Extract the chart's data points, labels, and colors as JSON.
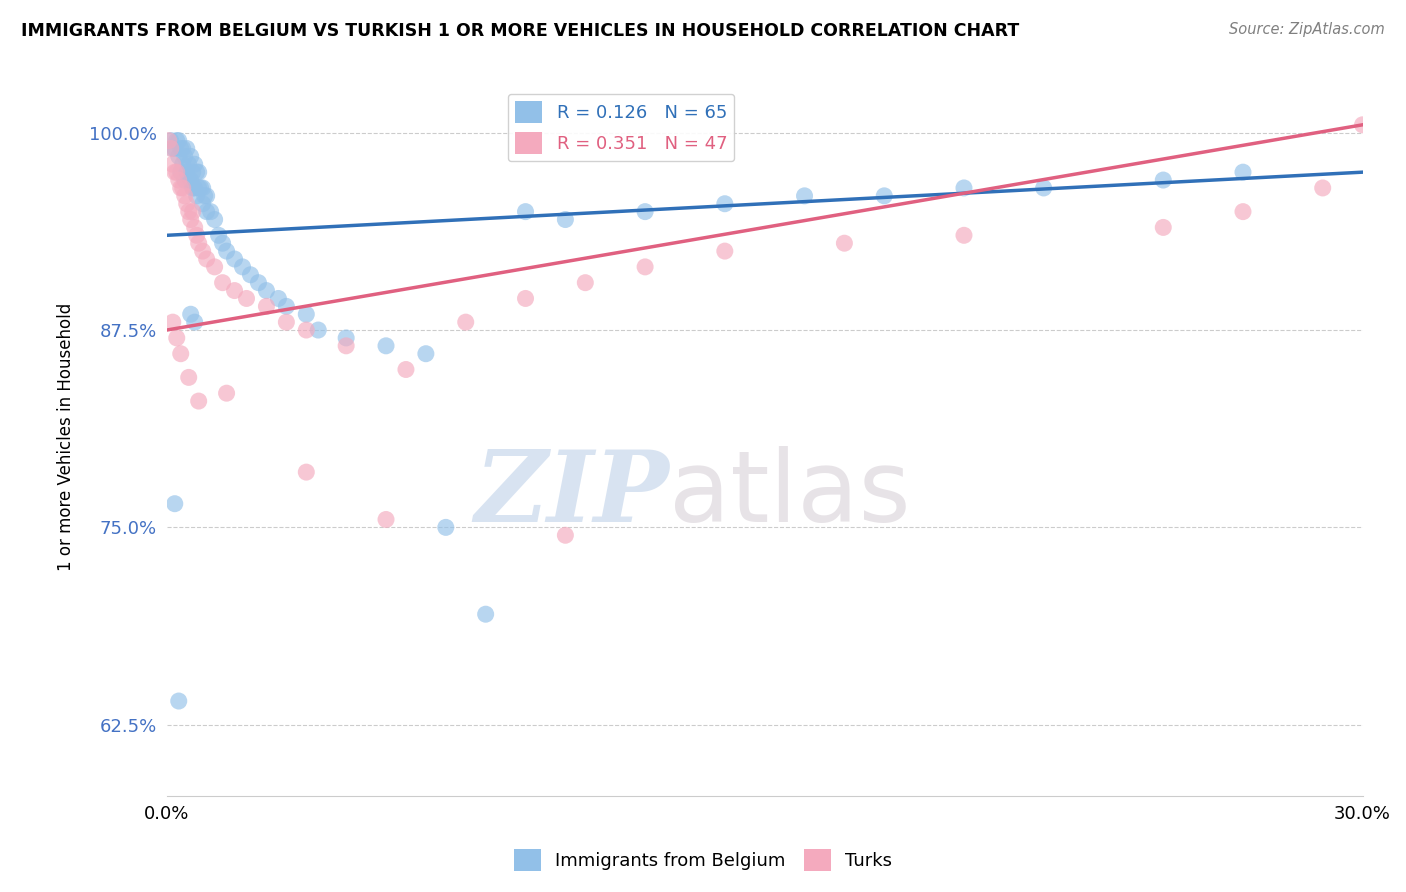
{
  "title": "IMMIGRANTS FROM BELGIUM VS TURKISH 1 OR MORE VEHICLES IN HOUSEHOLD CORRELATION CHART",
  "source": "Source: ZipAtlas.com",
  "ylabel": "1 or more Vehicles in Household",
  "xlabel": "",
  "xlim": [
    0.0,
    30.0
  ],
  "ylim": [
    58.0,
    103.5
  ],
  "yticks": [
    62.5,
    75.0,
    87.5,
    100.0
  ],
  "xticks": [
    0.0,
    30.0
  ],
  "watermark_zip": "ZIP",
  "watermark_atlas": "atlas",
  "blue_R": 0.126,
  "blue_N": 65,
  "pink_R": 0.351,
  "pink_N": 47,
  "blue_color": "#92C0E8",
  "pink_color": "#F4AABE",
  "blue_line_color": "#3070B8",
  "pink_line_color": "#E06080",
  "legend_blue_label": "Immigrants from Belgium",
  "legend_pink_label": "Turks",
  "blue_line_x0": 0.0,
  "blue_line_y0": 93.5,
  "blue_line_x1": 30.0,
  "blue_line_y1": 97.5,
  "pink_line_x0": 0.0,
  "pink_line_y0": 87.5,
  "pink_line_x1": 30.0,
  "pink_line_y1": 100.5,
  "blue_x": [
    0.1,
    0.15,
    0.2,
    0.25,
    0.3,
    0.3,
    0.35,
    0.35,
    0.4,
    0.4,
    0.45,
    0.45,
    0.5,
    0.5,
    0.55,
    0.55,
    0.6,
    0.6,
    0.65,
    0.65,
    0.7,
    0.7,
    0.75,
    0.75,
    0.8,
    0.8,
    0.85,
    0.9,
    0.9,
    0.95,
    1.0,
    1.0,
    1.1,
    1.2,
    1.3,
    1.4,
    1.5,
    1.7,
    1.9,
    2.1,
    2.3,
    2.5,
    2.8,
    3.0,
    3.5,
    3.8,
    4.5,
    5.5,
    6.5,
    7.0,
    8.0,
    9.0,
    10.0,
    12.0,
    14.0,
    16.0,
    18.0,
    20.0,
    22.0,
    25.0,
    27.0,
    0.2,
    0.3,
    0.6,
    0.7
  ],
  "blue_y": [
    99.5,
    99.0,
    99.0,
    99.5,
    99.5,
    98.5,
    99.0,
    97.5,
    99.0,
    98.0,
    98.5,
    97.0,
    99.0,
    97.5,
    98.0,
    97.0,
    98.5,
    97.0,
    97.5,
    96.5,
    98.0,
    96.5,
    97.5,
    96.0,
    97.5,
    96.5,
    96.5,
    96.5,
    95.5,
    96.0,
    96.0,
    95.0,
    95.0,
    94.5,
    93.5,
    93.0,
    92.5,
    92.0,
    91.5,
    91.0,
    90.5,
    90.0,
    89.5,
    89.0,
    88.5,
    87.5,
    87.0,
    86.5,
    86.0,
    75.0,
    69.5,
    95.0,
    94.5,
    95.0,
    95.5,
    96.0,
    96.0,
    96.5,
    96.5,
    97.0,
    97.5,
    76.5,
    64.0,
    88.5,
    88.0
  ],
  "pink_x": [
    0.05,
    0.1,
    0.15,
    0.2,
    0.25,
    0.3,
    0.35,
    0.4,
    0.45,
    0.5,
    0.55,
    0.6,
    0.65,
    0.7,
    0.75,
    0.8,
    0.9,
    1.0,
    1.2,
    1.4,
    1.7,
    2.0,
    2.5,
    3.0,
    3.5,
    4.5,
    6.0,
    7.5,
    9.0,
    10.5,
    12.0,
    14.0,
    17.0,
    20.0,
    25.0,
    27.0,
    29.0,
    30.0,
    0.15,
    0.25,
    0.35,
    0.55,
    0.8,
    1.5,
    3.5,
    5.5,
    10.0
  ],
  "pink_y": [
    99.5,
    99.0,
    98.0,
    97.5,
    97.5,
    97.0,
    96.5,
    96.5,
    96.0,
    95.5,
    95.0,
    94.5,
    95.0,
    94.0,
    93.5,
    93.0,
    92.5,
    92.0,
    91.5,
    90.5,
    90.0,
    89.5,
    89.0,
    88.0,
    87.5,
    86.5,
    85.0,
    88.0,
    89.5,
    90.5,
    91.5,
    92.5,
    93.0,
    93.5,
    94.0,
    95.0,
    96.5,
    100.5,
    88.0,
    87.0,
    86.0,
    84.5,
    83.0,
    83.5,
    78.5,
    75.5,
    74.5
  ]
}
